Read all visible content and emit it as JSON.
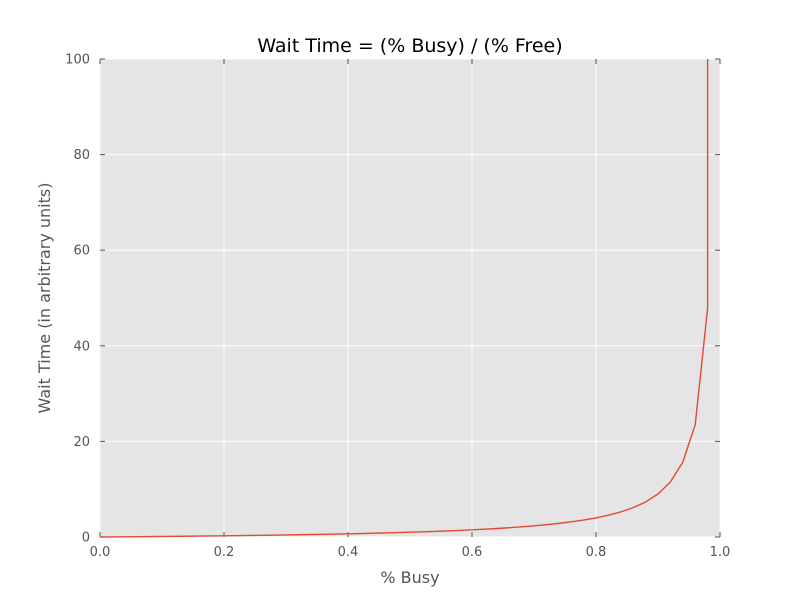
{
  "chart_data": {
    "type": "line",
    "title": "Wait Time = (% Busy) / (% Free)",
    "xlabel": "% Busy",
    "ylabel": "Wait Time (in arbitrary units)",
    "xlim": [
      0.0,
      1.0
    ],
    "ylim": [
      0,
      100
    ],
    "xticks": [
      "0.0",
      "0.2",
      "0.4",
      "0.6",
      "0.8",
      "1.0"
    ],
    "yticks": [
      "0",
      "20",
      "40",
      "60",
      "80",
      "100"
    ],
    "grid": true,
    "legend": "none",
    "colors": {
      "background": "#e5e5e5",
      "line": "#e24a33",
      "grid": "#ffffff",
      "text": "#555555"
    },
    "series": [
      {
        "x": [
          0.0,
          0.02,
          0.04,
          0.06,
          0.08,
          0.1,
          0.12,
          0.14,
          0.16,
          0.18,
          0.2,
          0.22,
          0.24,
          0.26,
          0.28,
          0.3,
          0.32,
          0.34,
          0.36,
          0.38,
          0.4,
          0.42,
          0.44,
          0.46,
          0.48,
          0.5,
          0.52,
          0.54,
          0.56,
          0.58,
          0.6,
          0.62,
          0.64,
          0.66,
          0.68,
          0.7,
          0.72,
          0.74,
          0.76,
          0.78,
          0.8,
          0.82,
          0.84,
          0.86,
          0.88,
          0.9,
          0.92,
          0.94,
          0.96,
          0.98,
          0.98
        ],
        "y": [
          0.0,
          0.02,
          0.04,
          0.06,
          0.09,
          0.11,
          0.14,
          0.16,
          0.19,
          0.22,
          0.25,
          0.28,
          0.32,
          0.35,
          0.39,
          0.43,
          0.47,
          0.52,
          0.56,
          0.61,
          0.67,
          0.72,
          0.79,
          0.85,
          0.92,
          1.0,
          1.08,
          1.17,
          1.27,
          1.38,
          1.5,
          1.63,
          1.78,
          1.94,
          2.13,
          2.33,
          2.57,
          2.85,
          3.17,
          3.55,
          4.0,
          4.56,
          5.25,
          6.14,
          7.33,
          9.0,
          11.5,
          15.67,
          23.5,
          47.8,
          100
        ]
      }
    ]
  }
}
